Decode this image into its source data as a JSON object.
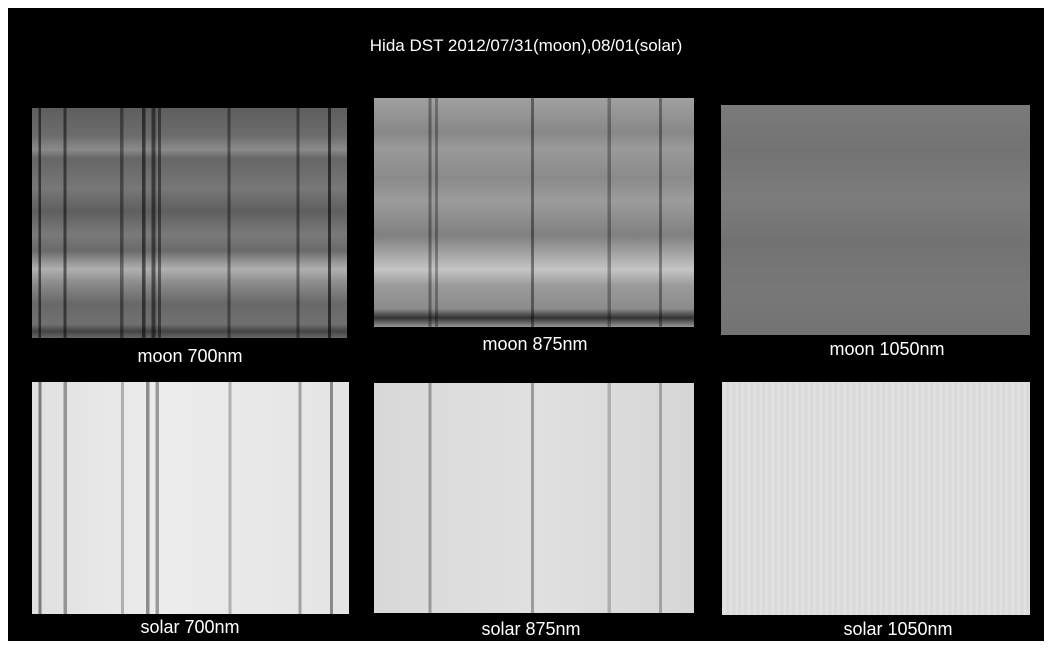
{
  "title": "Hida DST 2012/07/31(moon),08/01(solar)",
  "panels": [
    {
      "caption": "moon 700nm"
    },
    {
      "caption": "moon 875nm"
    },
    {
      "caption": "moon 1050nm"
    },
    {
      "caption": "solar 700nm"
    },
    {
      "caption": "solar 875nm"
    },
    {
      "caption": "solar 1050nm"
    }
  ]
}
